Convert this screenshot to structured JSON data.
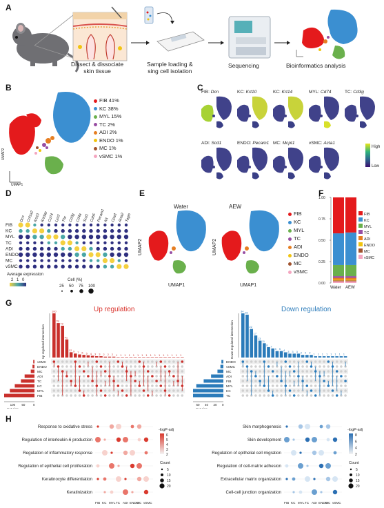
{
  "panel_letters": [
    "A",
    "B",
    "C",
    "D",
    "E",
    "F",
    "G",
    "H"
  ],
  "panelA": {
    "step1": "Dissect & dissociate\nskin tissue",
    "step2": "Sample loading &\nsing cell isolation",
    "step3": "Sequencing",
    "step4": "Bioinformatics analysis"
  },
  "panelB": {
    "legend": [
      {
        "label": "FIB 41%",
        "color": "#e41a1c"
      },
      {
        "label": "KC 38%",
        "color": "#3b8fd1"
      },
      {
        "label": "MYL 15%",
        "color": "#6ab04c"
      },
      {
        "label": "TC 2%",
        "color": "#984ea3"
      },
      {
        "label": "ADI 2%",
        "color": "#e67e22"
      },
      {
        "label": "ENDO 1%",
        "color": "#f1c40f"
      },
      {
        "label": "MC 1%",
        "color": "#a0522d"
      },
      {
        "label": "vSMC 1%",
        "color": "#f4a6c0"
      }
    ],
    "axis_x": "UMAP1",
    "axis_y": "UMAP2"
  },
  "panelC": {
    "row1": [
      {
        "type": "FIB:",
        "gene": "Dcn"
      },
      {
        "type": "KC:",
        "gene": "Krt10"
      },
      {
        "type": "KC:",
        "gene": "Krt14"
      },
      {
        "type": "MYL:",
        "gene": "Cd74"
      },
      {
        "type": "TC:",
        "gene": "Cd3g"
      }
    ],
    "row2": [
      {
        "type": "ADI:",
        "gene": "Scd1"
      },
      {
        "type": "ENDO:",
        "gene": "Pecam1"
      },
      {
        "type": "MC:",
        "gene": "Mcpt1"
      },
      {
        "type": "vSMC:",
        "gene": "Acta1"
      }
    ],
    "scale_high": "High",
    "scale_low": "Low"
  },
  "panelD": {
    "genes": [
      "Dcn",
      "Col1a2",
      "Krt10",
      "Krtdap",
      "Cd74",
      "Lyz2",
      "Thc",
      "Cd3g",
      "Cd4a",
      "Scd1",
      "Cdh5",
      "Pecam1",
      "Kit",
      "Cpa3",
      "Acta2",
      "Tagln"
    ],
    "rows": [
      "FIB",
      "KC",
      "MYL",
      "TC",
      "ADI",
      "ENDO",
      "MC",
      "vSMC"
    ],
    "legend_expr": "Average expression",
    "expr_ticks": [
      "2",
      "1",
      "0"
    ],
    "legend_pct": "Cell (%)",
    "pct_ticks": [
      "25",
      "50",
      "75",
      "100"
    ]
  },
  "panelE": {
    "left_title": "Water",
    "right_title": "AEW",
    "axis_x": "UMAP1",
    "axis_y": "UMAP2",
    "legend": [
      "FIB",
      "KC",
      "MYL",
      "TC",
      "ADI",
      "ENDO",
      "MC",
      "vSMC"
    ]
  },
  "panelF": {
    "chart_data": {
      "type": "bar",
      "categories": [
        "Water",
        "AEW"
      ],
      "series": [
        {
          "name": "FIB",
          "values": [
            0.42,
            0.41
          ]
        },
        {
          "name": "KC",
          "values": [
            0.37,
            0.38
          ]
        },
        {
          "name": "MYL",
          "values": [
            0.13,
            0.13
          ]
        },
        {
          "name": "TC",
          "values": [
            0.02,
            0.02
          ]
        },
        {
          "name": "ADI",
          "values": [
            0.02,
            0.02
          ]
        },
        {
          "name": "ENDO",
          "values": [
            0.01,
            0.01
          ]
        },
        {
          "name": "MC",
          "values": [
            0.01,
            0.01
          ]
        },
        {
          "name": "vSMC",
          "values": [
            0.02,
            0.02
          ]
        }
      ],
      "ylim": [
        0,
        1
      ],
      "yticks": [
        "0.00",
        "0.25",
        "0.50",
        "0.75",
        "1.00"
      ]
    },
    "legend": [
      "FIB",
      "KC",
      "MYL",
      "TC",
      "ADI",
      "ENDO",
      "MC",
      "vSMC"
    ],
    "legend_colors": [
      "#e41a1c",
      "#3b8fd1",
      "#6ab04c",
      "#984ea3",
      "#e67e22",
      "#f1c40f",
      "#a0522d",
      "#f4a6c0"
    ]
  },
  "panelG": {
    "up_title": "Up regulation",
    "down_title": "Down regulation",
    "up_ylabel": "Up regulated intersection",
    "down_ylabel": "Down regulated intersection",
    "set_size": "Set size",
    "chart_data": [
      {
        "type": "bar",
        "name": "Up regulation",
        "values": [
          100,
          78,
          72,
          41,
          12,
          9,
          7,
          6,
          5,
          4,
          3,
          3,
          2,
          2,
          2,
          1,
          1,
          1,
          1,
          1,
          1,
          1,
          1,
          1,
          1,
          1,
          1,
          1,
          1,
          1,
          1
        ],
        "sets": [
          "vSMC",
          "ENDO",
          "MC",
          "ADI",
          "TC",
          "KC",
          "MYL",
          "FIB"
        ],
        "set_sizes": [
          5,
          8,
          15,
          40,
          55,
          80,
          100,
          140
        ],
        "set_axis": [
          "150",
          "100",
          "50",
          "0"
        ]
      },
      {
        "type": "bar",
        "name": "Down regulation",
        "values": [
          34,
          33,
          22,
          17,
          13,
          11,
          8,
          7,
          5,
          5,
          4,
          3,
          3,
          3,
          2,
          2,
          2,
          1,
          1,
          1,
          1,
          1,
          1,
          1,
          1
        ],
        "sets": [
          "ENDO",
          "vSMC",
          "MC",
          "ADI",
          "FIB",
          "MYL",
          "KC",
          "TC"
        ],
        "set_sizes": [
          4,
          6,
          12,
          25,
          40,
          55,
          62,
          70
        ],
        "set_axis": [
          "80",
          "60",
          "40",
          "20",
          "0"
        ]
      }
    ],
    "up_labels": [
      "100",
      "78",
      "72",
      "41",
      "12"
    ],
    "down_labels": [
      "34",
      "33",
      "22",
      "17",
      "13"
    ]
  },
  "panelH": {
    "left_terms": [
      "Response to oxidative stress",
      "Regulation of interleukin-6 production",
      "Regulation of inflammatory response",
      "Regulation of epithelial cell proliferation",
      "Keratinocyte differentiation",
      "Keratinization"
    ],
    "right_terms": [
      "Skin morphogenesis",
      "Skin development",
      "Regulation of epithelial cell migration",
      "Regulation of cell-matrix adhesion",
      "Extracellular matrix organization",
      "Cell-cell junction organization"
    ],
    "x": [
      "FIB",
      "KC",
      "MYL",
      "TC",
      "ADI",
      "ENDO",
      "MC",
      "vSMC"
    ],
    "left_legend": "-logP-adj",
    "left_ticks": [
      "6",
      "5",
      "4",
      "3",
      "2"
    ],
    "right_legend": "-logP-adj",
    "right_ticks": [
      "8",
      "6",
      "4",
      "2"
    ],
    "count_title": "Count",
    "count_ticks": [
      "5",
      "10",
      "15",
      "20"
    ]
  }
}
